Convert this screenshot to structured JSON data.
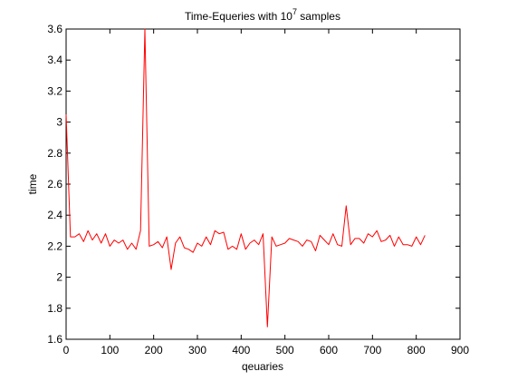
{
  "chart_data": {
    "type": "line",
    "title_base": "Time-Equeries with 10",
    "title_sup": "7",
    "title_rest": " samples",
    "xlabel": "qeuaries",
    "ylabel": "time",
    "xlim": [
      0,
      900
    ],
    "ylim": [
      1.6,
      3.6
    ],
    "xticks": [
      0,
      100,
      200,
      300,
      400,
      500,
      600,
      700,
      800,
      900
    ],
    "yticks": [
      1.6,
      1.8,
      2.0,
      2.2,
      2.4,
      2.6,
      2.8,
      3.0,
      3.2,
      3.4,
      3.6
    ],
    "xtick_labels": [
      "0",
      "100",
      "200",
      "300",
      "400",
      "500",
      "600",
      "700",
      "800",
      "900"
    ],
    "ytick_labels": [
      "1.6",
      "1.8",
      "2",
      "2.2",
      "2.4",
      "2.6",
      "2.8",
      "3",
      "3.2",
      "3.4",
      "3.6"
    ],
    "grid": false,
    "series": [
      {
        "color": "#ff0000",
        "x": [
          0,
          10,
          20,
          30,
          40,
          50,
          60,
          70,
          80,
          90,
          100,
          110,
          120,
          130,
          140,
          150,
          160,
          170,
          180,
          190,
          200,
          210,
          220,
          230,
          240,
          250,
          260,
          270,
          280,
          290,
          300,
          310,
          320,
          330,
          340,
          350,
          360,
          370,
          380,
          390,
          400,
          410,
          420,
          430,
          440,
          450,
          460,
          470,
          480,
          490,
          500,
          510,
          520,
          530,
          540,
          550,
          560,
          570,
          580,
          590,
          600,
          610,
          620,
          630,
          640,
          650,
          660,
          670,
          680,
          690,
          700,
          710,
          720,
          730,
          740,
          750,
          760,
          770,
          780,
          790,
          800,
          810,
          820
        ],
        "y": [
          3.05,
          2.26,
          2.26,
          2.28,
          2.23,
          2.3,
          2.24,
          2.28,
          2.22,
          2.28,
          2.2,
          2.24,
          2.22,
          2.24,
          2.18,
          2.22,
          2.18,
          2.3,
          3.6,
          2.2,
          2.21,
          2.23,
          2.19,
          2.26,
          2.05,
          2.22,
          2.26,
          2.19,
          2.18,
          2.16,
          2.22,
          2.2,
          2.26,
          2.21,
          2.3,
          2.28,
          2.29,
          2.18,
          2.2,
          2.18,
          2.28,
          2.18,
          2.22,
          2.24,
          2.21,
          2.28,
          1.68,
          2.26,
          2.2,
          2.21,
          2.22,
          2.25,
          2.24,
          2.23,
          2.2,
          2.24,
          2.23,
          2.17,
          2.27,
          2.24,
          2.21,
          2.28,
          2.21,
          2.2,
          2.46,
          2.21,
          2.25,
          2.25,
          2.22,
          2.28,
          2.26,
          2.3,
          2.23,
          2.24,
          2.27,
          2.2,
          2.26,
          2.21,
          2.21,
          2.2,
          2.26,
          2.21,
          2.27
        ]
      }
    ]
  }
}
